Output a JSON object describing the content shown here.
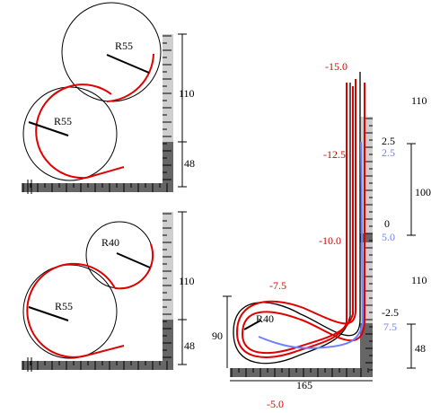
{
  "colors": {
    "track_red": "#e00000",
    "track_blue": "#6f7fff",
    "outline": "#000000",
    "ruler_dark": "#666666",
    "ruler_light": "#cfcfcf"
  },
  "panel_a": {
    "radius_upper": "R55",
    "radius_lower": "R55",
    "dim_110": "110",
    "dim_48": "48"
  },
  "panel_b": {
    "radius_upper": "R40",
    "radius_lower": "R55",
    "dim_110": "110",
    "dim_48": "48"
  },
  "panel_c": {
    "radius": "R40",
    "width_dim": "165",
    "height_dim": "90",
    "dim_right_top": "110",
    "dim_100": "100",
    "dim_right_mid": "110",
    "dim_48": "48",
    "red_labels": {
      "m15": "-15.0",
      "m12_5": "-12.5",
      "m10": "-10.0",
      "m7_5": "-7.5",
      "m5": "-5.0"
    },
    "black_labels": {
      "p2_5": "2.5",
      "zero": "0",
      "m2_5": "-2.5"
    },
    "blue_labels": {
      "p2_5": "2.5",
      "p5": "5.0",
      "p7_5": "7.5"
    }
  }
}
